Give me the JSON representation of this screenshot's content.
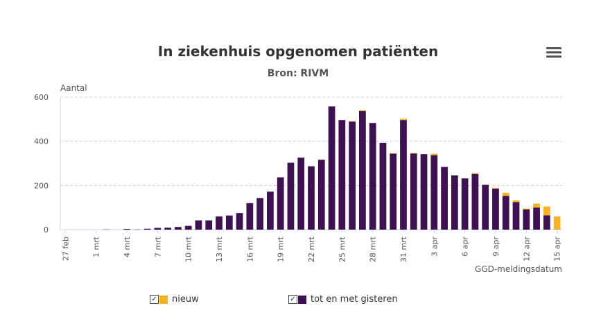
{
  "chart_data": {
    "type": "bar",
    "stacked": true,
    "title": "In ziekenhuis opgenomen patiënten",
    "subtitle": "Bron: RIVM",
    "ylabel": "Aantal",
    "xlabel": "GGD-meldingsdatum",
    "ylim": [
      0,
      600
    ],
    "yticks": [
      0,
      200,
      400,
      600
    ],
    "grid": true,
    "legend_position": "bottom",
    "categories": [
      "27 feb",
      "28 feb",
      "29 feb",
      "1 mrt",
      "2 mrt",
      "3 mrt",
      "4 mrt",
      "5 mrt",
      "6 mrt",
      "7 mrt",
      "8 mrt",
      "9 mrt",
      "10 mrt",
      "11 mrt",
      "12 mrt",
      "13 mrt",
      "14 mrt",
      "15 mrt",
      "16 mrt",
      "17 mrt",
      "18 mrt",
      "19 mrt",
      "20 mrt",
      "21 mrt",
      "22 mrt",
      "23 mrt",
      "24 mrt",
      "25 mrt",
      "26 mrt",
      "27 mrt",
      "28 mrt",
      "29 mrt",
      "30 mrt",
      "31 mrt",
      "1 apr",
      "2 apr",
      "3 apr",
      "4 apr",
      "5 apr",
      "6 apr",
      "7 apr",
      "8 apr",
      "9 apr",
      "10 apr",
      "11 apr",
      "12 apr",
      "13 apr",
      "14 apr",
      "15 apr"
    ],
    "tick_labels": [
      "27 feb",
      "1 mrt",
      "4 mrt",
      "7 mrt",
      "10 mrt",
      "13 mrt",
      "16 mrt",
      "19 mrt",
      "22 mrt",
      "25 mrt",
      "28 mrt",
      "31 mrt",
      "3 apr",
      "6 apr",
      "9 apr",
      "12 apr",
      "15 apr"
    ],
    "series": [
      {
        "name": "tot en met gisteren",
        "color": "#3d1152",
        "values": [
          0,
          0,
          0,
          0,
          1,
          0,
          3,
          1,
          4,
          8,
          9,
          12,
          17,
          42,
          42,
          60,
          64,
          75,
          120,
          143,
          172,
          237,
          303,
          326,
          287,
          316,
          558,
          496,
          489,
          537,
          483,
          393,
          344,
          496,
          345,
          342,
          337,
          284,
          246,
          232,
          252,
          203,
          186,
          153,
          125,
          92,
          100,
          65,
          0
        ]
      },
      {
        "name": "nieuw",
        "color": "#f7b125",
        "values": [
          0,
          0,
          0,
          0,
          0,
          0,
          0,
          0,
          0,
          0,
          0,
          0,
          0,
          0,
          0,
          0,
          0,
          0,
          0,
          0,
          0,
          0,
          0,
          0,
          0,
          2,
          0,
          0,
          3,
          4,
          0,
          0,
          2,
          6,
          2,
          0,
          7,
          0,
          0,
          0,
          4,
          0,
          3,
          14,
          8,
          4,
          18,
          40,
          60
        ]
      }
    ]
  },
  "legend": {
    "items": [
      {
        "label": "nieuw",
        "color": "#f7b125",
        "check": "✓"
      },
      {
        "label": "tot en met gisteren",
        "color": "#3d1152",
        "check": "✓"
      }
    ]
  },
  "menu_icon": "hamburger-menu-icon"
}
